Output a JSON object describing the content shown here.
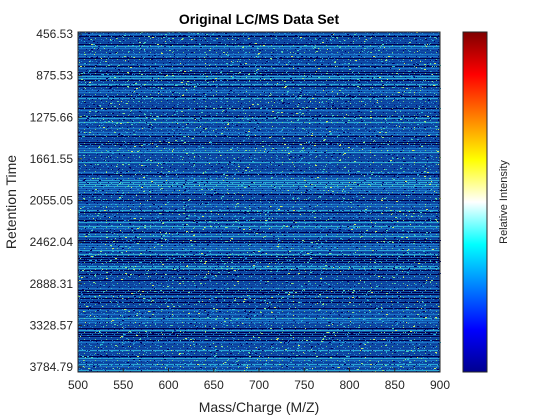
{
  "chart_data": {
    "type": "heatmap",
    "title": "Original LC/MS Data Set",
    "xlabel": "Mass/Charge (M/Z)",
    "ylabel": "Retention Time",
    "colorbar_label": "Relative Intensity",
    "colormap": "jet",
    "xlim": [
      500,
      900
    ],
    "x_ticks": [
      "500",
      "550",
      "600",
      "650",
      "700",
      "750",
      "800",
      "850",
      "900"
    ],
    "y_ticks": [
      "456.53",
      "875.53",
      "1275.66",
      "1661.55",
      "2055.05",
      "2462.04",
      "2888.31",
      "3328.57",
      "3784.79"
    ],
    "y_tick_direction": "increasing downward",
    "colorbar_ticks": [],
    "colors": {
      "dominant": "#0e4fa8",
      "background": "#ffffff",
      "axis": "#262626",
      "jet_stops": [
        "#00008f",
        "#0000ff",
        "#00ffff",
        "#ffff00",
        "#ff0000",
        "#800000"
      ]
    }
  }
}
